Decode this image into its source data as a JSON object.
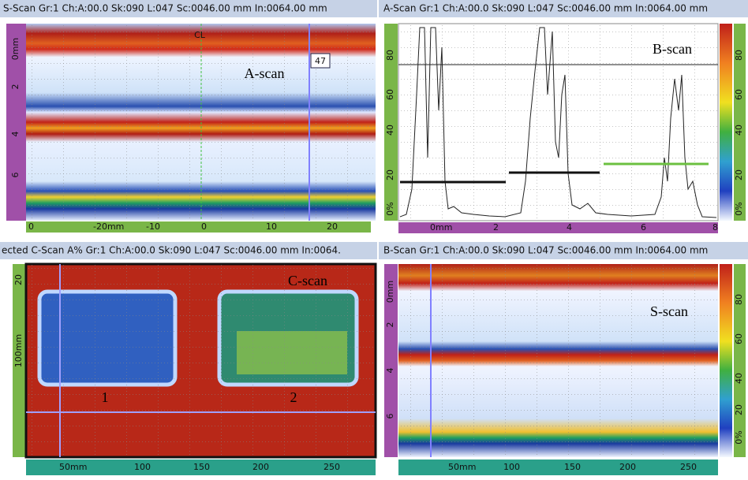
{
  "panels": [
    {
      "header": "S-Scan Gr:1 Ch:A:00.0 Sk:090 L:047 Sc:0046.00 mm In:0064.00 mm",
      "label": "A-scan",
      "cursor_label": "CL",
      "cursor_value": "47",
      "left_ticks": [
        "0mm",
        "2",
        "4",
        "6"
      ],
      "bottom_ticks": [
        "0",
        "-20mm",
        "-10",
        "0",
        "10",
        "20"
      ]
    },
    {
      "header": "A-Scan Gr:1 Ch:A:00.0 Sk:090 L:047 Sc:0046.00 mm In:0064.00 mm",
      "label": "B-scan",
      "left_ticks": [
        "0%",
        "20",
        "40",
        "60",
        "80"
      ],
      "right_ticks": [
        "0%",
        "20",
        "40",
        "60",
        "80"
      ],
      "bottom_ticks": [
        "0mm",
        "2",
        "4",
        "6",
        "8"
      ]
    },
    {
      "header": "ected C-Scan A% Gr:1 Ch:A:00.0 Sk:090 L:047 Sc:0046.00 mm In:0064.",
      "label": "C-scan",
      "region_labels": [
        "1",
        "2"
      ],
      "left_ticks": [
        "20",
        "100mm"
      ],
      "bottom_ticks": [
        "50mm",
        "100",
        "150",
        "200",
        "250"
      ]
    },
    {
      "header": "B-Scan Gr:1 Ch:A:00.0 Sk:090 L:047 Sc:0046.00 mm In:0064.00 mm",
      "label": "S-scan",
      "left_ticks": [
        "0mm",
        "2",
        "4",
        "6"
      ],
      "right_ticks": [
        "0%",
        "20",
        "40",
        "60",
        "80"
      ],
      "bottom_ticks": [
        "50mm",
        "100",
        "150",
        "200",
        "250"
      ]
    }
  ]
}
